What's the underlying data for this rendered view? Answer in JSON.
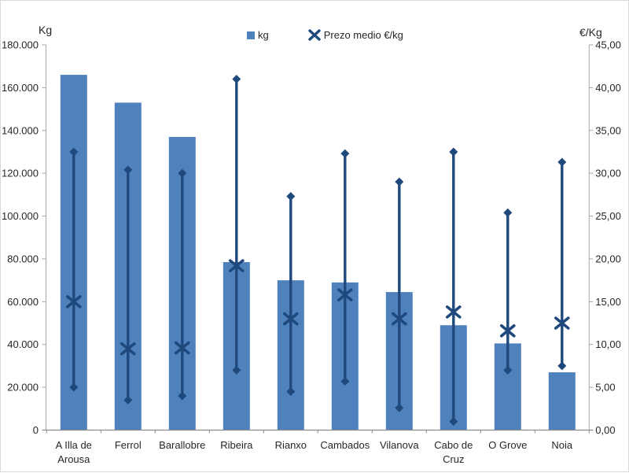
{
  "chart_data": {
    "type": "bar",
    "title": "",
    "grid": false,
    "legend_position": "top",
    "legend": {
      "items": [
        {
          "label": "kg",
          "marker": "square"
        },
        {
          "label": "Prezo medio €/kg",
          "marker": "x"
        }
      ]
    },
    "left_axis": {
      "label": "Kg",
      "min": 0,
      "max": 180000,
      "step": 20000,
      "tick_labels": [
        "0",
        "20.000",
        "40.000",
        "60.000",
        "80.000",
        "100.000",
        "120.000",
        "140.000",
        "160.000",
        "180.000"
      ]
    },
    "right_axis": {
      "label": "€/Kg",
      "min": 0,
      "max": 45,
      "step": 5,
      "tick_labels": [
        "0,00",
        "5,00",
        "10,00",
        "15,00",
        "20,00",
        "25,00",
        "30,00",
        "35,00",
        "40,00",
        "45,00"
      ]
    },
    "categories": [
      "A Illa de Arousa",
      "Ferrol",
      "Barallobre",
      "Ribeira",
      "Rianxo",
      "Cambados",
      "Vilanova",
      "Cabo de Cruz",
      "O Grove",
      "Noia"
    ],
    "category_label_lines": [
      [
        "A Illa de",
        "Arousa"
      ],
      [
        "Ferrol"
      ],
      [
        "Barallobre"
      ],
      [
        "Ribeira"
      ],
      [
        "Rianxo"
      ],
      [
        "Cambados"
      ],
      [
        "Vilanova"
      ],
      [
        "Cabo de",
        "Cruz"
      ],
      [
        "O Grove"
      ],
      [
        "Noia"
      ]
    ],
    "series": [
      {
        "name": "kg",
        "type": "bar",
        "axis": "left",
        "values": [
          166000,
          153000,
          137000,
          78500,
          70000,
          69000,
          64500,
          49000,
          40500,
          27000
        ]
      },
      {
        "name": "Prezo medio €/kg",
        "type": "range-with-average",
        "axis": "right",
        "avg": [
          15.0,
          9.5,
          9.6,
          19.2,
          13.0,
          15.8,
          13.0,
          13.8,
          11.6,
          12.5
        ],
        "min": [
          5.0,
          3.5,
          4.0,
          7.0,
          4.5,
          5.7,
          2.6,
          1.0,
          7.0,
          7.5
        ],
        "max": [
          32.5,
          30.4,
          30.0,
          41.0,
          27.3,
          32.3,
          29.0,
          32.5,
          25.4,
          31.3
        ]
      }
    ],
    "colors": {
      "bar": "#4F81BD",
      "marker": "#1F497D",
      "axis_line": "#A6A6A6",
      "bottom_axis_line": "#8C8C8C",
      "text": "#262626"
    }
  }
}
